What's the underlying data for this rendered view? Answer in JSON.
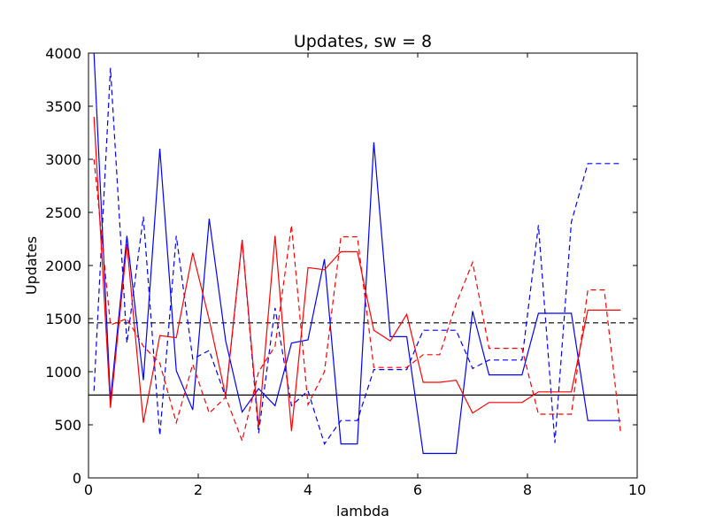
{
  "chart_data": {
    "type": "line",
    "title": "Updates, sw = 8",
    "xlabel": "lambda",
    "ylabel": "Updates",
    "xlim": [
      0,
      10
    ],
    "ylim": [
      0,
      4000
    ],
    "x_ticks": [
      "0",
      "2",
      "4",
      "6",
      "8",
      "10"
    ],
    "y_ticks": [
      "0",
      "500",
      "1000",
      "1500",
      "2000",
      "2500",
      "3000",
      "3500",
      "4000"
    ],
    "grid": false,
    "legend": "none",
    "hlines": [
      {
        "y": 1460,
        "color": "#000000",
        "style": "dashed"
      },
      {
        "y": 780,
        "color": "#000000",
        "style": "solid"
      }
    ],
    "series": [
      {
        "color": "#0000ff",
        "style": "solid",
        "x": [
          0.1,
          0.4,
          0.7,
          1.0,
          1.3,
          1.6,
          1.9,
          2.2,
          2.5,
          2.8,
          3.1,
          3.4,
          3.7,
          4.0,
          4.3,
          4.6,
          4.9,
          5.2,
          5.5,
          5.8,
          6.1,
          6.4,
          6.7,
          7.0,
          7.3,
          7.6,
          7.9,
          8.2,
          8.5,
          8.8,
          9.1,
          9.4,
          9.7
        ],
        "y": [
          4000,
          730,
          2280,
          920,
          3100,
          1010,
          640,
          2440,
          1290,
          620,
          840,
          680,
          1270,
          1300,
          2060,
          320,
          320,
          3160,
          1330,
          1330,
          230,
          230,
          230,
          1570,
          970,
          970,
          970,
          1550,
          1550,
          1550,
          540,
          540,
          540
        ]
      },
      {
        "color": "#0000ff",
        "style": "dashed",
        "x": [
          0.1,
          0.4,
          0.7,
          1.0,
          1.3,
          1.6,
          1.9,
          2.2,
          2.5,
          2.8,
          3.1,
          3.4,
          3.7,
          4.0,
          4.3,
          4.6,
          4.9,
          5.2,
          5.5,
          5.8,
          6.1,
          6.4,
          6.7,
          7.0,
          7.3,
          7.6,
          7.9,
          8.2,
          8.5,
          8.8,
          9.1,
          9.4,
          9.7
        ],
        "y": [
          820,
          3860,
          1270,
          2460,
          400,
          2280,
          1120,
          1200,
          760,
          2240,
          420,
          1600,
          680,
          820,
          320,
          540,
          540,
          1020,
          1020,
          1020,
          1390,
          1390,
          1390,
          1030,
          1110,
          1110,
          1110,
          2380,
          330,
          2410,
          2960,
          2960,
          2960
        ]
      },
      {
        "color": "#ff0000",
        "style": "solid",
        "x": [
          0.1,
          0.4,
          0.7,
          1.0,
          1.3,
          1.6,
          1.9,
          2.2,
          2.5,
          2.8,
          3.1,
          3.4,
          3.7,
          4.0,
          4.3,
          4.6,
          4.9,
          5.2,
          5.5,
          5.8,
          6.1,
          6.4,
          6.7,
          7.0,
          7.3,
          7.6,
          7.9,
          8.2,
          8.5,
          8.8,
          9.1,
          9.4,
          9.7
        ],
        "y": [
          3400,
          660,
          2200,
          520,
          1340,
          1320,
          2120,
          1490,
          770,
          2240,
          480,
          2280,
          440,
          1980,
          1960,
          2130,
          2130,
          1390,
          1290,
          1540,
          900,
          900,
          920,
          610,
          710,
          710,
          710,
          810,
          810,
          810,
          1580,
          1580,
          1580
        ]
      },
      {
        "color": "#ff0000",
        "style": "dashed",
        "x": [
          0.1,
          0.4,
          0.7,
          1.0,
          1.3,
          1.6,
          1.9,
          2.2,
          2.5,
          2.8,
          3.1,
          3.4,
          3.7,
          4.0,
          4.3,
          4.6,
          4.9,
          5.2,
          5.5,
          5.8,
          6.1,
          6.4,
          6.7,
          7.0,
          7.3,
          7.6,
          7.9,
          8.2,
          8.5,
          8.8,
          9.1,
          9.4,
          9.7
        ],
        "y": [
          3000,
          1440,
          1500,
          1240,
          1080,
          520,
          1070,
          610,
          760,
          350,
          1000,
          1240,
          2380,
          690,
          1000,
          2270,
          2270,
          1040,
          1040,
          1040,
          1160,
          1160,
          1640,
          2030,
          1220,
          1220,
          1220,
          600,
          600,
          600,
          1770,
          1770,
          420
        ]
      }
    ]
  }
}
